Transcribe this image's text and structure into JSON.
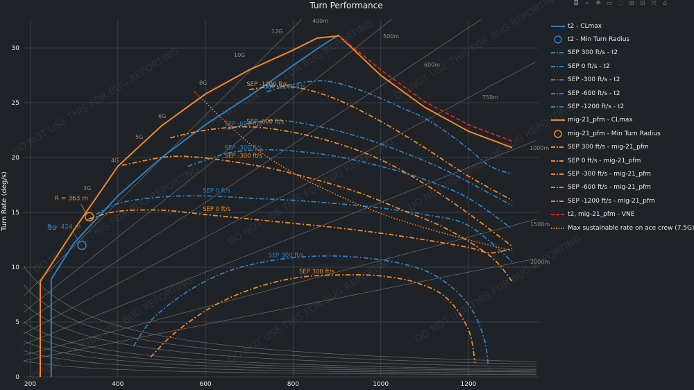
{
  "chart_data": {
    "type": "line",
    "title": "Turn Performance",
    "ylabel": "Turn Rate (deg/s)",
    "xlabel": "",
    "xlim": [
      185,
      1360
    ],
    "ylim": [
      0,
      32.6
    ],
    "xticks": [
      200,
      400,
      600,
      800,
      1000,
      1200
    ],
    "yticks": [
      0,
      5,
      10,
      15,
      20,
      25,
      30
    ],
    "grid": true,
    "legend_position": "right",
    "colors": {
      "t2": "#2f7fc1",
      "mig21": "#f28a1e",
      "vne": "#d62728",
      "sustain": "#f28a1e",
      "guide": "#7f7f7f",
      "background": "#1f2226"
    },
    "watermark": "DO NOT USE THIS FOR BUG REPORTING",
    "g_lines": [
      {
        "label": "2G",
        "n": 2
      },
      {
        "label": "3G",
        "n": 3
      },
      {
        "label": "4G",
        "n": 4
      },
      {
        "label": "5G",
        "n": 5
      },
      {
        "label": "6G",
        "n": 6
      },
      {
        "label": "8G",
        "n": 8
      },
      {
        "label": "10G",
        "n": 10
      },
      {
        "label": "12G",
        "n": 12
      }
    ],
    "radius_lines": [
      {
        "label": "400m",
        "r": 400
      },
      {
        "label": "500m",
        "r": 500
      },
      {
        "label": "600m",
        "r": 600
      },
      {
        "label": "750m",
        "r": 750
      },
      {
        "label": "1000m",
        "r": 1000
      },
      {
        "label": "1500m",
        "r": 1500
      },
      {
        "label": "2000m",
        "r": 2000
      }
    ],
    "series": [
      {
        "name": "t2 - CLmax",
        "group": "t2",
        "dash": "solid",
        "x": [
          248,
          248,
          300,
          400,
          500,
          600,
          700,
          800,
          865,
          905
        ],
        "y": [
          0,
          8.9,
          12.2,
          16.5,
          20.0,
          23.0,
          25.6,
          28.4,
          30.2,
          31.2
        ]
      },
      {
        "name": "t2 - Min Turn Radius",
        "group": "t2",
        "marker": "circle",
        "x": [
          318
        ],
        "y": [
          12.0
        ],
        "annotation": "R = 424 m"
      },
      {
        "name": "SEP 300 ft/s - t2",
        "group": "t2",
        "dash": "dashdot",
        "label": "SEP 300 ft/s",
        "x": [
          436,
          480,
          560,
          650,
          750,
          850,
          950,
          1050,
          1130,
          1200,
          1235,
          1245
        ],
        "y": [
          2.8,
          5.3,
          7.8,
          9.6,
          10.6,
          11.0,
          10.9,
          10.3,
          9.1,
          6.6,
          3.6,
          1.1
        ]
      },
      {
        "name": "SEP 0 ft/s - t2",
        "group": "t2",
        "dash": "dashdot",
        "label": "SEP 0 ft/s",
        "x": [
          330,
          400,
          500,
          600,
          700,
          800,
          900,
          1000,
          1100,
          1200,
          1300
        ],
        "y": [
          14.3,
          15.8,
          16.4,
          16.5,
          16.3,
          16.1,
          15.8,
          15.4,
          14.8,
          13.8,
          10.5
        ]
      },
      {
        "name": "SEP -300 ft/s - t2",
        "group": "t2",
        "dash": "dashdot",
        "label": "SEP -300 ft/s",
        "x": [
          560,
          650,
          730,
          800,
          900,
          1000,
          1100,
          1200,
          1300
        ],
        "y": [
          19.2,
          20.4,
          20.7,
          20.6,
          20.1,
          19.2,
          18.0,
          16.3,
          13.5
        ]
      },
      {
        "name": "SEP -600 ft/s - t2",
        "group": "t2",
        "dash": "dashdot",
        "label": "SEP -600 ft/s",
        "x": [
          650,
          750,
          850,
          950,
          1050,
          1150,
          1250,
          1300
        ],
        "y": [
          22.6,
          23.4,
          22.9,
          21.9,
          20.5,
          18.8,
          16.7,
          15.6
        ]
      },
      {
        "name": "SEP -1200 ft/s - t2",
        "group": "t2",
        "dash": "dashdot",
        "label": "SEP -1200 ft/s",
        "x": [
          740,
          800,
          860,
          900,
          950,
          1000,
          1050,
          1100,
          1150,
          1200,
          1250,
          1300
        ],
        "y": [
          26.0,
          26.7,
          27.0,
          26.8,
          26.2,
          25.4,
          24.5,
          23.6,
          22.3,
          20.8,
          19.2,
          18.5
        ]
      },
      {
        "name": "mig-21_pfm - CLmax",
        "group": "mig21",
        "dash": "solid",
        "x": [
          223,
          223,
          300,
          400,
          500,
          600,
          700,
          800,
          855,
          905,
          1000,
          1100,
          1200,
          1300
        ],
        "y": [
          0,
          8.7,
          13.4,
          19.2,
          22.9,
          25.8,
          28.0,
          29.8,
          30.9,
          31.1,
          27.5,
          24.6,
          22.4,
          20.9
        ]
      },
      {
        "name": "mig-21_pfm - Min Turn Radius",
        "group": "mig21",
        "marker": "circle",
        "x": [
          335
        ],
        "y": [
          14.6
        ],
        "annotation": "R = 363 m"
      },
      {
        "name": "SEP 300 ft/s - mig-21_pfm",
        "group": "mig21",
        "dash": "dashdot",
        "label": "SEP 300 ft/s",
        "x": [
          475,
          530,
          620,
          720,
          820,
          920,
          1000,
          1080,
          1150,
          1200,
          1215
        ],
        "y": [
          1.8,
          4.0,
          6.5,
          8.2,
          9.1,
          9.3,
          9.2,
          8.6,
          7.2,
          4.3,
          1.3
        ]
      },
      {
        "name": "SEP 0 ft/s - mig-21_pfm",
        "group": "mig21",
        "dash": "dashdot",
        "label": "SEP 0 ft/s",
        "x": [
          335,
          400,
          500,
          600,
          700,
          800,
          900,
          1000,
          1100,
          1200,
          1250,
          1300
        ],
        "y": [
          14.4,
          15.1,
          15.2,
          14.8,
          14.4,
          14.0,
          13.6,
          13.1,
          12.5,
          11.8,
          11.3,
          11.7
        ]
      },
      {
        "name": "SEP -300 ft/s - mig-21_pfm",
        "group": "mig21",
        "dash": "dashdot",
        "label": "SEP -300 ft/s",
        "x": [
          410,
          500,
          560,
          650,
          750,
          850,
          950,
          1050,
          1150,
          1250,
          1300
        ],
        "y": [
          19.3,
          20.0,
          20.1,
          19.7,
          19.0,
          18.0,
          16.8,
          15.2,
          13.5,
          11.0,
          8.7
        ]
      },
      {
        "name": "SEP -600 ft/s - mig-21_pfm",
        "group": "mig21",
        "dash": "dashdot",
        "label": "SEP -600 ft/s",
        "x": [
          520,
          600,
          700,
          800,
          900,
          1000,
          1100,
          1200,
          1300
        ],
        "y": [
          21.8,
          22.5,
          22.8,
          22.3,
          21.3,
          19.8,
          17.6,
          14.9,
          11.9
        ]
      },
      {
        "name": "SEP -1200 ft/s - mig-21_pfm",
        "group": "mig21",
        "dash": "dashdot",
        "label": "SEP -1200 ft/s",
        "x": [
          700,
          760,
          820,
          900,
          1000,
          1100,
          1200,
          1300
        ],
        "y": [
          26.2,
          26.5,
          26.3,
          25.3,
          23.3,
          20.9,
          18.3,
          16.1
        ]
      },
      {
        "name": "t2, mig-21_pfm - VNE",
        "group": "vne",
        "dash": "dash",
        "x": [
          905,
          1000,
          1100,
          1200,
          1300
        ],
        "y": [
          31.1,
          28.0,
          25.1,
          23.0,
          21.5
        ]
      },
      {
        "name": "Max sustainable rate on ace crew (7.5G)",
        "group": "sustain",
        "dash": "dot",
        "x": [
          575,
          700,
          800,
          900,
          1000,
          1100,
          1200,
          1300
        ],
        "y": [
          26.0,
          21.3,
          18.6,
          16.6,
          14.9,
          13.6,
          12.5,
          11.5
        ]
      }
    ]
  },
  "toolbar_icons": [
    "camera-icon",
    "zoom-icon",
    "pan-icon",
    "box-select-icon",
    "lasso-icon",
    "zoom-in-icon",
    "zoom-out-icon",
    "autoscale-icon",
    "home-icon"
  ]
}
